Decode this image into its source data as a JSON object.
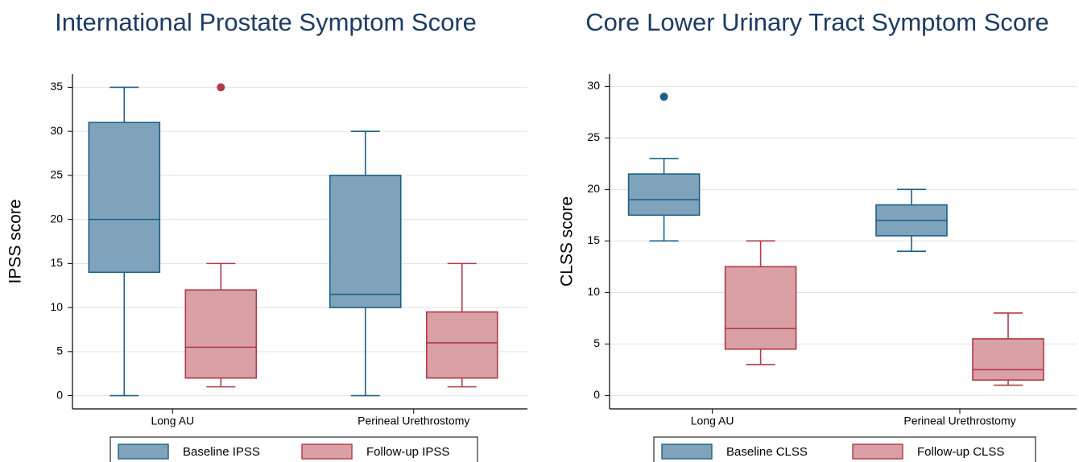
{
  "chart_data": [
    {
      "type": "box",
      "title": "International Prostate Symptom Score",
      "y_label": "IPSS score",
      "categories": [
        "Long AU",
        "Perineal Urethrostomy"
      ],
      "ylim": [
        -1.5,
        36.5
      ],
      "yticks": [
        0,
        5,
        10,
        15,
        20,
        25,
        30,
        35
      ],
      "grid": true,
      "series": [
        {
          "name": "Baseline IPSS",
          "color": "#7fa3bb",
          "edge": "#1f5f86",
          "low": [
            0,
            0
          ],
          "q1": [
            14,
            10
          ],
          "median": [
            20,
            11.5
          ],
          "q3": [
            31,
            25
          ],
          "high": [
            35,
            30
          ],
          "outliers": [
            [],
            []
          ]
        },
        {
          "name": "Follow-up IPSS",
          "color": "#d9a0a6",
          "edge": "#b03a48",
          "low": [
            1,
            1
          ],
          "q1": [
            2,
            2
          ],
          "median": [
            5.5,
            6
          ],
          "q3": [
            12,
            9.5
          ],
          "high": [
            15,
            15
          ],
          "outliers": [
            [
              35
            ],
            []
          ]
        }
      ]
    },
    {
      "type": "box",
      "title": "Core Lower Urinary Tract Symptom Score",
      "y_label": "CLSS score",
      "categories": [
        "Long AU",
        "Perineal Urethrostomy"
      ],
      "ylim": [
        -1.3,
        31.2
      ],
      "yticks": [
        0,
        5,
        10,
        15,
        20,
        25,
        30
      ],
      "grid": true,
      "series": [
        {
          "name": "Baseline CLSS",
          "color": "#7fa3bb",
          "edge": "#1f5f86",
          "low": [
            15,
            14
          ],
          "q1": [
            17.5,
            15.5
          ],
          "median": [
            19,
            17
          ],
          "q3": [
            21.5,
            18.5
          ],
          "high": [
            23,
            20
          ],
          "outliers": [
            [
              29
            ],
            []
          ]
        },
        {
          "name": "Follow-up CLSS",
          "color": "#d9a0a6",
          "edge": "#b03a48",
          "low": [
            3,
            1
          ],
          "q1": [
            4.5,
            1.5
          ],
          "median": [
            6.5,
            2.5
          ],
          "q3": [
            12.5,
            5.5
          ],
          "high": [
            15,
            8
          ],
          "outliers": [
            [],
            []
          ]
        }
      ]
    }
  ]
}
